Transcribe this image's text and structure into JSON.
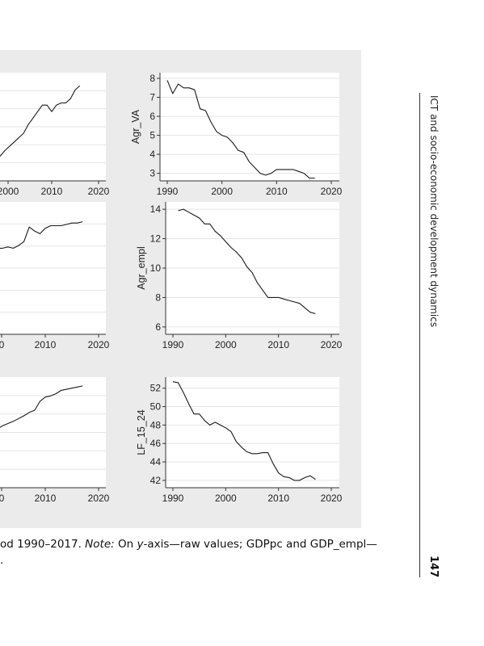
{
  "running_head": "ICT and socio-economic development dynamics",
  "page_number": "147",
  "caption": {
    "line1_part1": "od 1990–2017. ",
    "line1_note": "Note:",
    "line1_part2": " On ",
    "line1_y": "y",
    "line1_part3": "-axis—raw values; GDPpc and GDP_empl—",
    "line2": "."
  },
  "chart_data": [
    {
      "type": "line",
      "title": "",
      "xlabel": "",
      "ylabel": "",
      "xlim": [
        1985,
        2022
      ],
      "ylim": [
        0,
        10
      ],
      "xticks": [
        "2000",
        "2010",
        "2020"
      ],
      "yticks": [],
      "x": [
        1998,
        2000,
        2002,
        2004,
        2005,
        2006,
        2007,
        2008,
        2009,
        2010,
        2011,
        2012,
        2013,
        2014,
        2015,
        2016
      ],
      "series": [
        {
          "values": [
            1.8,
            2.8,
            3.6,
            4.4,
            5.2,
            5.8,
            6.4,
            7.0,
            7.0,
            6.4,
            7.0,
            7.2,
            7.2,
            7.6,
            8.4,
            8.8
          ]
        }
      ]
    },
    {
      "type": "line",
      "title": "",
      "xlabel": "",
      "ylabel": "Agr_VA",
      "xlim": [
        1989,
        2020
      ],
      "ylim": [
        2.6,
        8.3
      ],
      "xticks": [
        "1990",
        "2000",
        "2010",
        "2020"
      ],
      "yticks": [
        "3",
        "4",
        "5",
        "6",
        "7",
        "8"
      ],
      "x": [
        1990,
        1991,
        1992,
        1993,
        1994,
        1995,
        1996,
        1997,
        1998,
        1999,
        2000,
        2001,
        2002,
        2003,
        2004,
        2005,
        2006,
        2007,
        2008,
        2009,
        2010,
        2011,
        2012,
        2013,
        2014,
        2015,
        2016,
        2017
      ],
      "series": [
        {
          "values": [
            7.9,
            7.2,
            7.7,
            7.5,
            7.5,
            7.4,
            6.4,
            6.3,
            5.7,
            5.2,
            5.0,
            4.9,
            4.6,
            4.2,
            4.1,
            3.6,
            3.3,
            3.0,
            2.9,
            3.0,
            3.2,
            3.2,
            3.2,
            3.2,
            3.1,
            3.0,
            2.75,
            2.75
          ]
        }
      ]
    },
    {
      "type": "line",
      "title": "",
      "xlabel": "",
      "ylabel": "",
      "xlim": [
        1985,
        2022
      ],
      "ylim": [
        0,
        10
      ],
      "xticks": [
        "0",
        "2010",
        "2020"
      ],
      "yticks": [],
      "x": [
        1998,
        1999,
        2000,
        2001,
        2002,
        2003,
        2004,
        2005,
        2006,
        2007,
        2008,
        2009,
        2010,
        2011,
        2012,
        2013,
        2014,
        2015,
        2016,
        2017
      ],
      "series": [
        {
          "values": [
            6.0,
            6.3,
            6.3,
            6.5,
            6.5,
            6.6,
            6.5,
            6.7,
            7.0,
            8.1,
            7.8,
            7.6,
            8.0,
            8.2,
            8.2,
            8.2,
            8.3,
            8.4,
            8.4,
            8.5
          ]
        }
      ]
    },
    {
      "type": "line",
      "title": "",
      "xlabel": "",
      "ylabel": "Agr_empl",
      "xlim": [
        1989,
        2020
      ],
      "ylim": [
        5.5,
        14.5
      ],
      "xticks": [
        "1990",
        "2000",
        "2010",
        "2020"
      ],
      "yticks": [
        "6",
        "8",
        "10",
        "12",
        "14"
      ],
      "x": [
        1991,
        1992,
        1993,
        1994,
        1995,
        1996,
        1997,
        1998,
        1999,
        2000,
        2001,
        2002,
        2003,
        2004,
        2005,
        2006,
        2007,
        2008,
        2009,
        2010,
        2011,
        2012,
        2013,
        2014,
        2015,
        2016,
        2017
      ],
      "series": [
        {
          "values": [
            13.9,
            14.0,
            13.8,
            13.6,
            13.4,
            13.0,
            13.0,
            12.5,
            12.2,
            11.8,
            11.4,
            11.1,
            10.7,
            10.1,
            9.7,
            9.0,
            8.5,
            8.0,
            8.0,
            8.0,
            7.9,
            7.8,
            7.7,
            7.6,
            7.3,
            7.0,
            6.9
          ]
        }
      ]
    },
    {
      "type": "line",
      "title": "",
      "xlabel": "",
      "ylabel": "",
      "xlim": [
        1985,
        2022
      ],
      "ylim": [
        0,
        10
      ],
      "xticks": [
        "0",
        "2010",
        "2020"
      ],
      "yticks": [],
      "x": [
        1998,
        2000,
        2002,
        2004,
        2006,
        2007,
        2008,
        2009,
        2010,
        2011,
        2012,
        2013,
        2014,
        2015,
        2016,
        2017
      ],
      "series": [
        {
          "values": [
            4.5,
            5.0,
            5.6,
            6.0,
            6.5,
            6.8,
            7.0,
            7.8,
            8.2,
            8.3,
            8.5,
            8.8,
            8.9,
            9.0,
            9.1,
            9.2
          ]
        }
      ]
    },
    {
      "type": "line",
      "title": "",
      "xlabel": "",
      "ylabel": "LF_15_24",
      "xlim": [
        1989,
        2020
      ],
      "ylim": [
        41.2,
        53.2
      ],
      "xticks": [
        "1990",
        "2000",
        "2010",
        "2020"
      ],
      "yticks": [
        "42",
        "44",
        "46",
        "48",
        "50",
        "52"
      ],
      "x": [
        1990,
        1991,
        1992,
        1993,
        1994,
        1995,
        1996,
        1997,
        1998,
        1999,
        2000,
        2001,
        2002,
        2003,
        2004,
        2005,
        2006,
        2007,
        2008,
        2009,
        2010,
        2011,
        2012,
        2013,
        2014,
        2015,
        2016,
        2017
      ],
      "series": [
        {
          "values": [
            52.7,
            52.6,
            51.5,
            50.3,
            49.2,
            49.2,
            48.5,
            48.0,
            48.3,
            48.0,
            47.7,
            47.3,
            46.2,
            45.6,
            45.1,
            44.9,
            44.9,
            45.0,
            45.0,
            43.8,
            42.8,
            42.4,
            42.3,
            42.0,
            42.0,
            42.3,
            42.5,
            42.1
          ]
        }
      ]
    }
  ]
}
